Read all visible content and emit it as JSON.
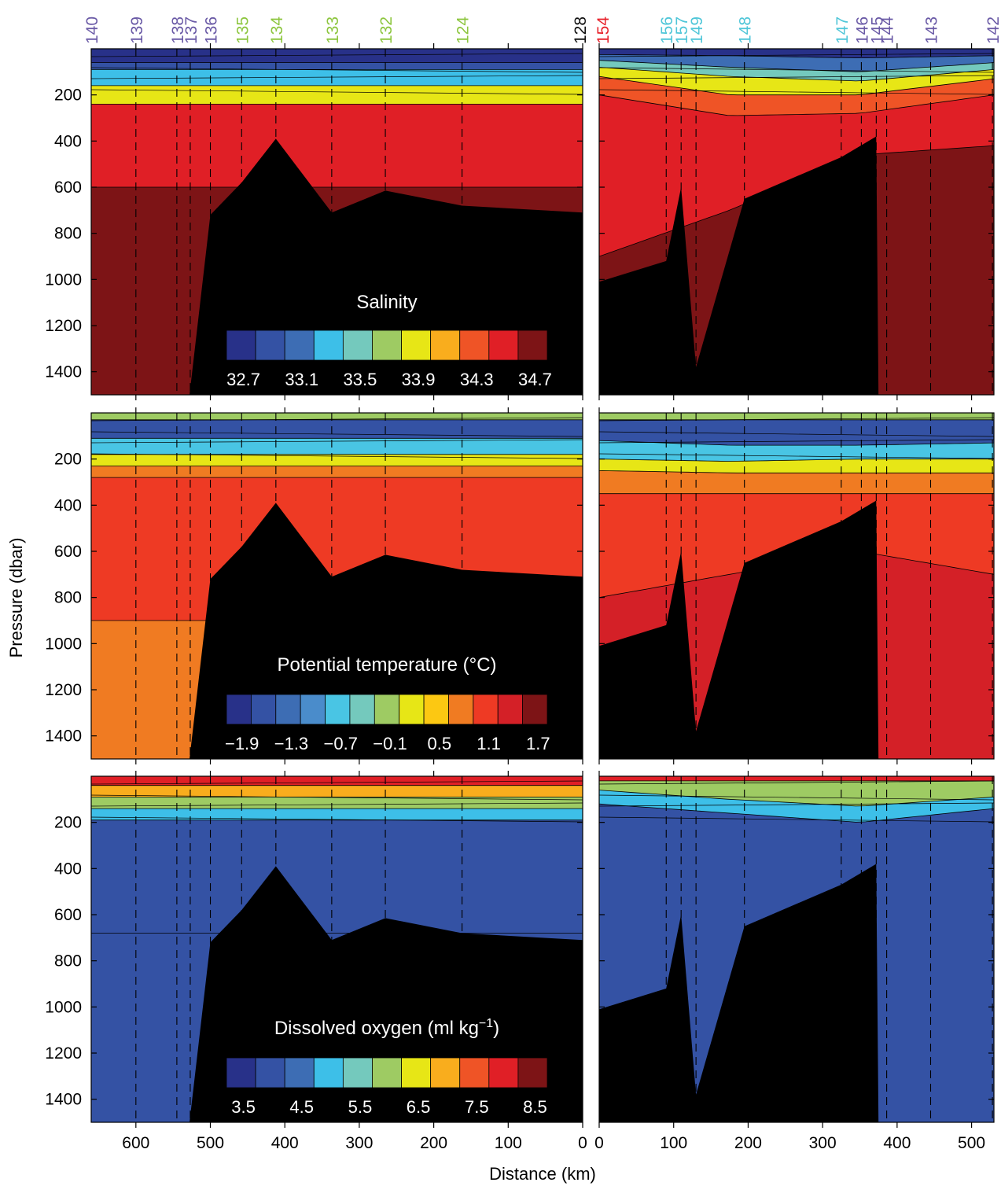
{
  "figure": {
    "ylabel": "Pressure (dbar)",
    "xlabel": "Distance (km)"
  },
  "stations": {
    "left": [
      {
        "id": "140",
        "km": 660,
        "color": "#6a5aa6"
      },
      {
        "id": "139",
        "km": 600,
        "color": "#6a5aa6"
      },
      {
        "id": "138",
        "km": 545,
        "color": "#6a5aa6"
      },
      {
        "id": "137",
        "km": 527,
        "color": "#6a5aa6"
      },
      {
        "id": "136",
        "km": 500,
        "color": "#6a5aa6"
      },
      {
        "id": "135",
        "km": 458,
        "color": "#8dc63f"
      },
      {
        "id": "134",
        "km": 412,
        "color": "#8dc63f"
      },
      {
        "id": "133",
        "km": 337,
        "color": "#8dc63f"
      },
      {
        "id": "132",
        "km": 265,
        "color": "#8dc63f"
      },
      {
        "id": "124",
        "km": 162,
        "color": "#8dc63f"
      },
      {
        "id": "128",
        "km": 0,
        "color": "#111111"
      }
    ],
    "right": [
      {
        "id": "154",
        "km": 0,
        "color": "#e8212a"
      },
      {
        "id": "156",
        "km": 90,
        "color": "#4fc6d8"
      },
      {
        "id": "157",
        "km": 110,
        "color": "#4fc6d8"
      },
      {
        "id": "149",
        "km": 130,
        "color": "#4fc6d8"
      },
      {
        "id": "148",
        "km": 195,
        "color": "#4fc6d8"
      },
      {
        "id": "147",
        "km": 325,
        "color": "#4fc6d8"
      },
      {
        "id": "146",
        "km": 352,
        "color": "#6a5aa6"
      },
      {
        "id": "145",
        "km": 372,
        "color": "#6a5aa6"
      },
      {
        "id": "144",
        "km": 386,
        "color": "#6a5aa6"
      },
      {
        "id": "143",
        "km": 445,
        "color": "#6a5aa6"
      },
      {
        "id": "142",
        "km": 528,
        "color": "#6a5aa6"
      }
    ]
  },
  "chart_data": [
    {
      "type": "heatmap",
      "title": "Salinity",
      "xlabel": "Distance (km)",
      "ylabel": "Pressure (dbar)",
      "ylim": [
        1500,
        0
      ],
      "left_xlim": [
        660,
        0
      ],
      "right_xlim": [
        0,
        530
      ],
      "colorbar_ticks": [
        "32.7",
        "33.1",
        "33.5",
        "33.9",
        "34.3",
        "34.7"
      ],
      "colors": [
        "#283189",
        "#3452a4",
        "#3d6db4",
        "#3dbfe8",
        "#74c9bd",
        "#9ecb63",
        "#e7e616",
        "#f9ad1d",
        "#ef5426",
        "#e01f26",
        "#7d1416"
      ],
      "levels_left": [
        [
          0,
          60,
          160,
          110,
          40
        ],
        [
          1,
          90,
          190,
          150,
          90
        ],
        [
          3,
          160,
          240,
          210,
          160
        ],
        [
          6,
          240,
          330,
          290,
          250
        ],
        [
          9,
          600,
          430,
          560,
          560
        ],
        [
          10,
          1500,
          1500,
          1500,
          1500
        ]
      ],
      "levels_right": [
        [
          0,
          25,
          30,
          40,
          30
        ],
        [
          2,
          50,
          80,
          100,
          60
        ],
        [
          4,
          80,
          120,
          140,
          90
        ],
        [
          6,
          120,
          200,
          200,
          130
        ],
        [
          8,
          200,
          290,
          280,
          200
        ],
        [
          9,
          900,
          700,
          460,
          420
        ],
        [
          10,
          1500,
          1500,
          1500,
          1500
        ]
      ]
    },
    {
      "type": "heatmap",
      "title": "Potential temperature (°C)",
      "xlabel": "Distance (km)",
      "ylabel": "Pressure (dbar)",
      "ylim": [
        1500,
        0
      ],
      "left_xlim": [
        660,
        0
      ],
      "right_xlim": [
        0,
        530
      ],
      "colorbar_ticks": [
        "−1.9",
        "−1.3",
        "−0.7",
        "−0.1",
        "0.5",
        "1.1",
        "1.7"
      ],
      "colors": [
        "#283189",
        "#3452a4",
        "#3d6db4",
        "#4a8ccb",
        "#49c5e4",
        "#74c9bd",
        "#9ecb63",
        "#e7e616",
        "#fcc812",
        "#f07b22",
        "#ee3a24",
        "#d42027",
        "#7d1416"
      ],
      "levels_left": [
        [
          6,
          30,
          30,
          20,
          20
        ],
        [
          1,
          110,
          150,
          140,
          130
        ],
        [
          4,
          180,
          220,
          230,
          240
        ],
        [
          7,
          230,
          300,
          330,
          340
        ],
        [
          9,
          280,
          400,
          480,
          470
        ],
        [
          10,
          900,
          900,
          900,
          900
        ],
        [
          9,
          1500,
          1500,
          1500,
          1500
        ]
      ],
      "levels_right": [
        [
          6,
          30,
          30,
          30,
          30
        ],
        [
          1,
          120,
          140,
          140,
          130
        ],
        [
          4,
          200,
          210,
          200,
          200
        ],
        [
          7,
          250,
          260,
          260,
          260
        ],
        [
          9,
          350,
          350,
          350,
          350
        ],
        [
          10,
          800,
          700,
          600,
          700
        ],
        [
          11,
          1500,
          1500,
          1500,
          1500
        ]
      ]
    },
    {
      "type": "heatmap",
      "title": "Dissolved oxygen (ml kg⁻¹)",
      "xlabel": "Distance (km)",
      "ylabel": "Pressure (dbar)",
      "ylim": [
        1500,
        0
      ],
      "left_xlim": [
        660,
        0
      ],
      "right_xlim": [
        0,
        530
      ],
      "colorbar_ticks": [
        "3.5",
        "4.5",
        "5.5",
        "6.5",
        "7.5",
        "8.5"
      ],
      "colors": [
        "#283189",
        "#3452a4",
        "#3d6db4",
        "#3dbfe8",
        "#74c9bd",
        "#9ecb63",
        "#e7e616",
        "#f9ad1d",
        "#ef5426",
        "#e01f26",
        "#7d1416"
      ],
      "levels_left": [
        [
          9,
          40,
          40,
          40,
          40
        ],
        [
          7,
          90,
          90,
          90,
          90
        ],
        [
          5,
          140,
          140,
          140,
          140
        ],
        [
          3,
          190,
          200,
          220,
          260
        ],
        [
          1,
          680,
          700,
          700,
          700
        ],
        [
          1,
          1500,
          1500,
          1500,
          1500
        ]
      ],
      "levels_right": [
        [
          9,
          20,
          20,
          20,
          20
        ],
        [
          5,
          60,
          100,
          130,
          90
        ],
        [
          3,
          120,
          160,
          200,
          140
        ],
        [
          1,
          1500,
          1500,
          1500,
          1500
        ]
      ]
    }
  ],
  "seafloor": {
    "left": [
      [
        660,
        1500
      ],
      [
        528,
        1500
      ],
      [
        500,
        720
      ],
      [
        458,
        580
      ],
      [
        412,
        390
      ],
      [
        337,
        710
      ],
      [
        265,
        615
      ],
      [
        162,
        680
      ],
      [
        0,
        710
      ],
      [
        0,
        1500
      ]
    ],
    "right": [
      [
        0,
        1500
      ],
      [
        0,
        1010
      ],
      [
        90,
        920
      ],
      [
        110,
        600
      ],
      [
        130,
        1380
      ],
      [
        195,
        650
      ],
      [
        325,
        470
      ],
      [
        372,
        380
      ],
      [
        375,
        1500
      ]
    ]
  },
  "axes": {
    "left_xticks": [
      "600",
      "500",
      "400",
      "300",
      "200",
      "100",
      "0"
    ],
    "left_xtick_values": [
      600,
      500,
      400,
      300,
      200,
      100,
      0
    ],
    "right_xticks": [
      "0",
      "100",
      "200",
      "300",
      "400",
      "500"
    ],
    "right_xtick_values": [
      0,
      100,
      200,
      300,
      400,
      500
    ],
    "yticks": [
      "200",
      "400",
      "600",
      "800",
      "1000",
      "1200",
      "1400"
    ],
    "ytick_values": [
      200,
      400,
      600,
      800,
      1000,
      1200,
      1400
    ]
  }
}
